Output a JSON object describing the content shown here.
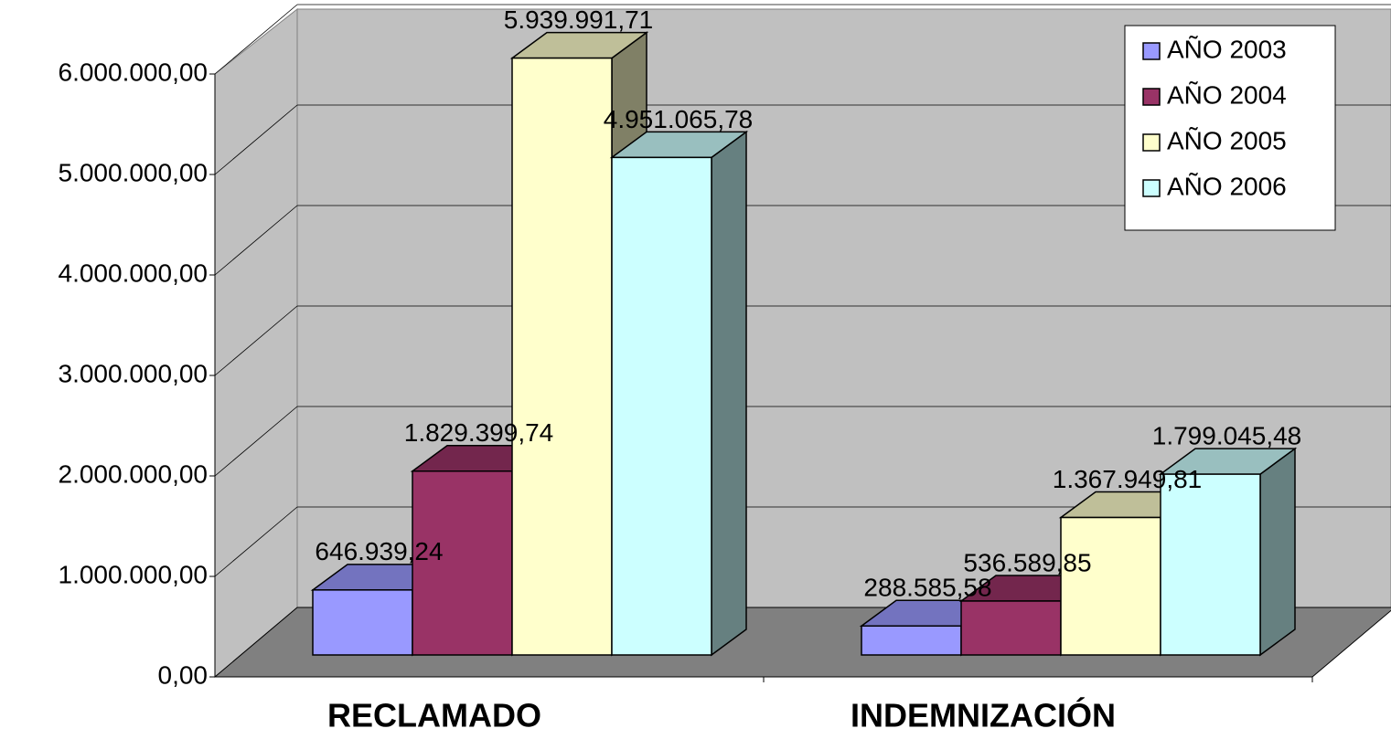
{
  "chart_data": {
    "type": "bar3d",
    "categories": [
      "RECLAMADO",
      "INDEMNIZACIÓN"
    ],
    "series": [
      {
        "name": "AÑO 2003",
        "color": "#9999ff",
        "values": [
          646939.24,
          288585.58
        ],
        "value_labels": [
          "646.939,24",
          "288.585,58"
        ]
      },
      {
        "name": "AÑO 2004",
        "color": "#993366",
        "values": [
          1829399.74,
          536589.85
        ],
        "value_labels": [
          "1.829.399,74",
          "536.589,85"
        ]
      },
      {
        "name": "AÑO 2005",
        "color": "#ffffcc",
        "values": [
          5939991.71,
          1367949.81
        ],
        "value_labels": [
          "5.939.991,71",
          "1.367.949,81"
        ]
      },
      {
        "name": "AÑO 2006",
        "color": "#ccffff",
        "values": [
          4951065.78,
          1799045.48
        ],
        "value_labels": [
          "4.951.065,78",
          "1.799.045,48"
        ]
      }
    ],
    "ylim": [
      0,
      6000000
    ],
    "yticks": [
      {
        "value": 0,
        "label": "0,00"
      },
      {
        "value": 1000000,
        "label": "1.000.000,00"
      },
      {
        "value": 2000000,
        "label": "2.000.000,00"
      },
      {
        "value": 3000000,
        "label": "3.000.000,00"
      },
      {
        "value": 4000000,
        "label": "4.000.000,00"
      },
      {
        "value": 5000000,
        "label": "5.000.000,00"
      },
      {
        "value": 6000000,
        "label": "6.000.000,00"
      }
    ],
    "grid": true,
    "legend": "top-right"
  }
}
